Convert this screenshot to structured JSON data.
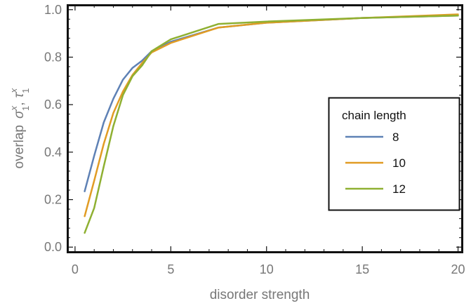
{
  "chart_data": {
    "type": "line",
    "xlabel": "disorder strength",
    "ylabel": {
      "prefix": "overlap",
      "symbols": [
        {
          "base": "σ",
          "sup": "x",
          "sub": "1"
        },
        {
          "base": "τ",
          "sup": "x",
          "sub": "1"
        }
      ],
      "separator": ","
    },
    "xlim": [
      -0.4,
      20.2
    ],
    "ylim": [
      -0.02,
      1.02
    ],
    "x_ticks": [
      0,
      5,
      10,
      15,
      20
    ],
    "y_ticks": [
      0.0,
      0.2,
      0.4,
      0.6,
      0.8,
      1.0
    ],
    "x_tick_labels": [
      "0",
      "5",
      "10",
      "15",
      "20"
    ],
    "y_tick_labels": [
      "0.0",
      "0.2",
      "0.4",
      "0.6",
      "0.8",
      "1.0"
    ],
    "grid": false,
    "legend": {
      "title": "chain length",
      "placement": "right"
    },
    "series": [
      {
        "name": "8",
        "color": "#5e81b5",
        "x": [
          0.5,
          1.0,
          1.5,
          2.0,
          2.5,
          3.0,
          3.5,
          4.0,
          5.0,
          7.5,
          10.0,
          15.0,
          20.0
        ],
        "y": [
          0.235,
          0.385,
          0.525,
          0.625,
          0.705,
          0.755,
          0.785,
          0.825,
          0.865,
          0.925,
          0.945,
          0.965,
          0.975
        ]
      },
      {
        "name": "10",
        "color": "#e19c24",
        "x": [
          0.5,
          1.0,
          1.5,
          2.0,
          2.5,
          3.0,
          3.5,
          4.0,
          5.0,
          7.5,
          10.0,
          15.0,
          20.0
        ],
        "y": [
          0.13,
          0.28,
          0.435,
          0.565,
          0.655,
          0.725,
          0.775,
          0.82,
          0.86,
          0.925,
          0.945,
          0.965,
          0.98
        ]
      },
      {
        "name": "12",
        "color": "#8fb032",
        "x": [
          0.5,
          1.0,
          1.5,
          2.0,
          2.5,
          3.0,
          3.5,
          4.0,
          5.0,
          7.5,
          10.0,
          15.0,
          20.0
        ],
        "y": [
          0.06,
          0.165,
          0.34,
          0.51,
          0.64,
          0.72,
          0.765,
          0.825,
          0.875,
          0.94,
          0.95,
          0.965,
          0.975
        ]
      }
    ]
  }
}
